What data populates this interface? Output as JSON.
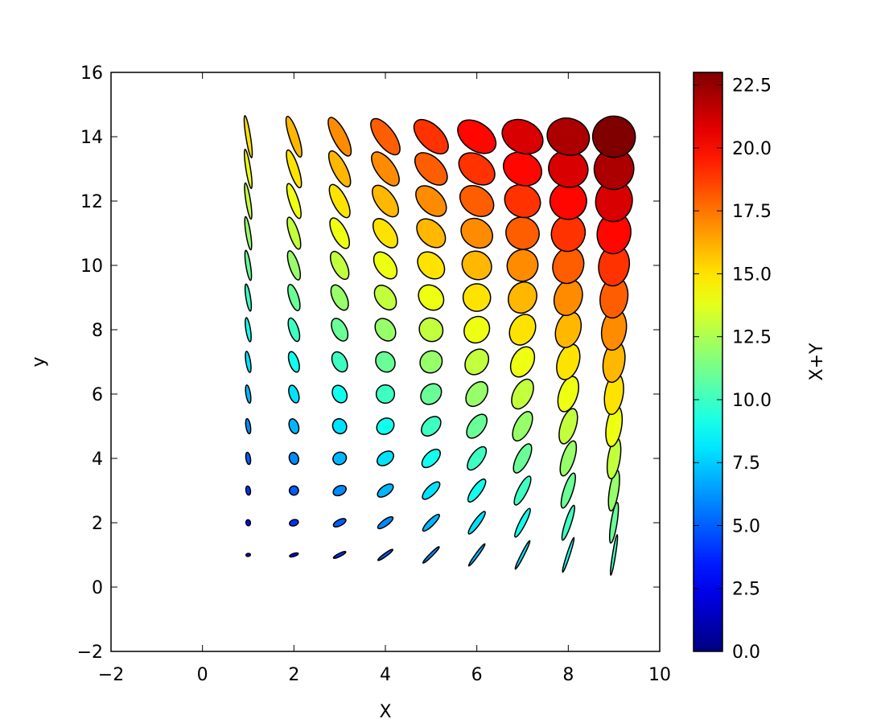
{
  "chart_data": {
    "type": "ellipse_collection",
    "xlabel": "X",
    "ylabel": "y",
    "colorbar_label": "X+Y",
    "x": [
      0,
      1,
      2,
      3,
      4,
      5,
      6,
      7,
      8,
      9
    ],
    "y": [
      0,
      1,
      2,
      3,
      4,
      5,
      6,
      7,
      8,
      9,
      10,
      11,
      12,
      13,
      14
    ],
    "widths": [
      0,
      0.1,
      0.2,
      0.3,
      0.4,
      0.5,
      0.6,
      0.7,
      0.8,
      0.9
    ],
    "heights": [
      0,
      0.0667,
      0.1333,
      0.2,
      0.2667,
      0.3333,
      0.4,
      0.4667,
      0.5333,
      0.6,
      0.6667,
      0.7333,
      0.8,
      0.8667,
      0.9333
    ],
    "angles": [
      0,
      9,
      18,
      27,
      36,
      45,
      54,
      63,
      72,
      81
    ],
    "values": [
      [
        0,
        1,
        2,
        3,
        4,
        5,
        6,
        7,
        8,
        9
      ],
      [
        1,
        2,
        3,
        4,
        5,
        6,
        7,
        8,
        9,
        10
      ],
      [
        2,
        3,
        4,
        5,
        6,
        7,
        8,
        9,
        10,
        11
      ],
      [
        3,
        4,
        5,
        6,
        7,
        8,
        9,
        10,
        11,
        12
      ],
      [
        4,
        5,
        6,
        7,
        8,
        9,
        10,
        11,
        12,
        13
      ],
      [
        5,
        6,
        7,
        8,
        9,
        10,
        11,
        12,
        13,
        14
      ],
      [
        6,
        7,
        8,
        9,
        10,
        11,
        12,
        13,
        14,
        15
      ],
      [
        7,
        8,
        9,
        10,
        11,
        12,
        13,
        14,
        15,
        16
      ],
      [
        8,
        9,
        10,
        11,
        12,
        13,
        14,
        15,
        16,
        17
      ],
      [
        9,
        10,
        11,
        12,
        13,
        14,
        15,
        16,
        17,
        18
      ],
      [
        10,
        11,
        12,
        13,
        14,
        15,
        16,
        17,
        18,
        19
      ],
      [
        11,
        12,
        13,
        14,
        15,
        16,
        17,
        18,
        19,
        20
      ],
      [
        12,
        13,
        14,
        15,
        16,
        17,
        18,
        19,
        20,
        21
      ],
      [
        13,
        14,
        15,
        16,
        17,
        18,
        19,
        20,
        21,
        22
      ],
      [
        14,
        15,
        16,
        17,
        18,
        19,
        20,
        21,
        22,
        23
      ]
    ],
    "colormap": "jet",
    "xlim": [
      -2,
      10
    ],
    "ylim": [
      -2,
      16
    ],
    "clim": [
      0,
      23
    ],
    "xticks": [
      {
        "value": -2,
        "label": "−2"
      },
      0,
      2,
      4,
      6,
      8,
      10
    ],
    "yticks": [
      {
        "value": -2,
        "label": "−2"
      },
      0,
      2,
      4,
      6,
      8,
      10,
      12,
      14,
      16
    ],
    "cticks": [
      {
        "value": 0,
        "label": "0.0"
      },
      2.5,
      {
        "value": 5,
        "label": "5.0"
      },
      7.5,
      {
        "value": 10,
        "label": "10.0"
      },
      12.5,
      {
        "value": 15,
        "label": "15.0"
      },
      17.5,
      {
        "value": 20,
        "label": "20.0"
      },
      22.5
    ]
  }
}
